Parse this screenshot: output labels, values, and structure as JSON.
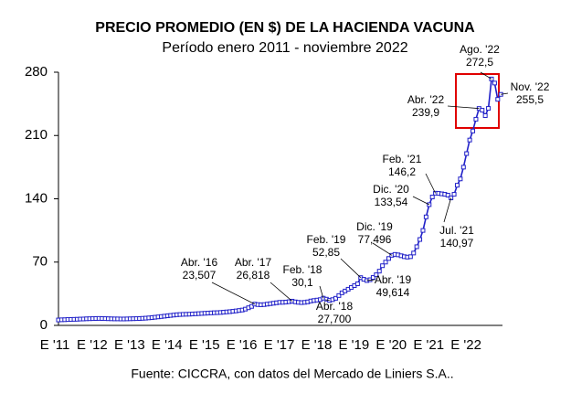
{
  "chart_data": {
    "type": "line",
    "title": "PRECIO PROMEDIO (EN $) DE LA HACIENDA VACUNA",
    "subtitle": "Período enero 2011 - noviembre 2022",
    "source": "Fuente: CICCRA, con datos del Mercado de Liniers S.A..",
    "categories": [
      "E '11",
      null,
      null,
      null,
      null,
      null,
      null,
      null,
      null,
      null,
      null,
      null,
      "E '12",
      null,
      null,
      null,
      null,
      null,
      null,
      null,
      null,
      null,
      null,
      null,
      "E '13",
      null,
      null,
      null,
      null,
      null,
      null,
      null,
      null,
      null,
      null,
      null,
      "E '14",
      null,
      null,
      null,
      null,
      null,
      null,
      null,
      null,
      null,
      null,
      null,
      "E '15",
      null,
      null,
      null,
      null,
      null,
      null,
      null,
      null,
      null,
      null,
      null,
      "E '16",
      null,
      null,
      null,
      null,
      null,
      null,
      null,
      null,
      null,
      null,
      null,
      "E '17",
      null,
      null,
      null,
      null,
      null,
      null,
      null,
      null,
      null,
      null,
      null,
      "E '18",
      null,
      null,
      null,
      null,
      null,
      null,
      null,
      null,
      null,
      null,
      null,
      "E '19",
      null,
      null,
      null,
      null,
      null,
      null,
      null,
      null,
      null,
      null,
      null,
      "E '20",
      null,
      null,
      null,
      null,
      null,
      null,
      null,
      null,
      null,
      null,
      null,
      "E '21",
      null,
      null,
      null,
      null,
      null,
      null,
      null,
      null,
      null,
      null,
      null,
      "E '22",
      null,
      null,
      null,
      null,
      null,
      null,
      null,
      null,
      null,
      null
    ],
    "values": [
      6.0,
      6.2,
      6.3,
      6.5,
      6.6,
      6.7,
      6.8,
      7.0,
      7.1,
      7.3,
      7.4,
      7.5,
      7.6,
      7.7,
      7.6,
      7.5,
      7.4,
      7.3,
      7.2,
      7.2,
      7.1,
      7.1,
      7.2,
      7.3,
      7.4,
      7.5,
      7.6,
      7.8,
      8.0,
      8.3,
      8.6,
      9.0,
      9.4,
      9.8,
      10.2,
      10.6,
      11.0,
      11.4,
      11.8,
      12.0,
      12.2,
      12.3,
      12.4,
      12.6,
      12.8,
      13.0,
      13.2,
      13.4,
      13.6,
      13.8,
      14.0,
      14.1,
      14.3,
      14.6,
      14.9,
      15.2,
      15.6,
      16.0,
      16.5,
      17.0,
      18.0,
      19.5,
      21.0,
      23.507,
      23.0,
      22.8,
      23.0,
      23.5,
      24.0,
      24.5,
      25.0,
      25.5,
      25.5,
      25.8,
      26.2,
      26.818,
      26.0,
      25.5,
      25.2,
      25.5,
      26.0,
      27.0,
      27.5,
      28.0,
      28.5,
      30.1,
      29.0,
      27.7,
      28.5,
      30.0,
      33.0,
      36.0,
      38.0,
      40.0,
      42.0,
      44.0,
      46.0,
      52.85,
      51.0,
      49.614,
      50.5,
      53.0,
      56.0,
      60.0,
      66.0,
      70.0,
      74.0,
      77.496,
      78.5,
      78.0,
      77.0,
      76.0,
      75.5,
      76.0,
      80.0,
      87.0,
      95.0,
      105.0,
      120.0,
      133.54,
      142.0,
      146.2,
      146.0,
      145.5,
      145.0,
      144.0,
      140.97,
      145.0,
      155.0,
      162.0,
      175.0,
      190.0,
      205.0,
      215.0,
      228.0,
      239.9,
      238.0,
      232.0,
      240.0,
      272.5,
      268.0,
      250.0,
      255.5
    ],
    "color": "#2020c8",
    "ylim": [
      0,
      280
    ],
    "yticks": [
      0,
      70,
      140,
      210,
      280
    ],
    "annotations": [
      {
        "label": "Abr. '16",
        "value_label": "23,507"
      },
      {
        "label": "Abr. '17",
        "value_label": "26,818"
      },
      {
        "label": "Feb. '18",
        "value_label": "30,1"
      },
      {
        "label": "Abr. '18",
        "value_label": "27,700"
      },
      {
        "label": "Feb. '19",
        "value_label": "52,85"
      },
      {
        "label": "Abr. '19",
        "value_label": "49,614"
      },
      {
        "label": "Dic. '19",
        "value_label": "77,496"
      },
      {
        "label": "Dic. '20",
        "value_label": "133,54"
      },
      {
        "label": "Feb. '21",
        "value_label": "146,2"
      },
      {
        "label": "Jul. '21",
        "value_label": "140,97"
      },
      {
        "label": "Abr. '22",
        "value_label": "239,9"
      },
      {
        "label": "Ago. '22",
        "value_label": "272,5"
      },
      {
        "label": "Nov. '22",
        "value_label": "255,5"
      }
    ]
  }
}
